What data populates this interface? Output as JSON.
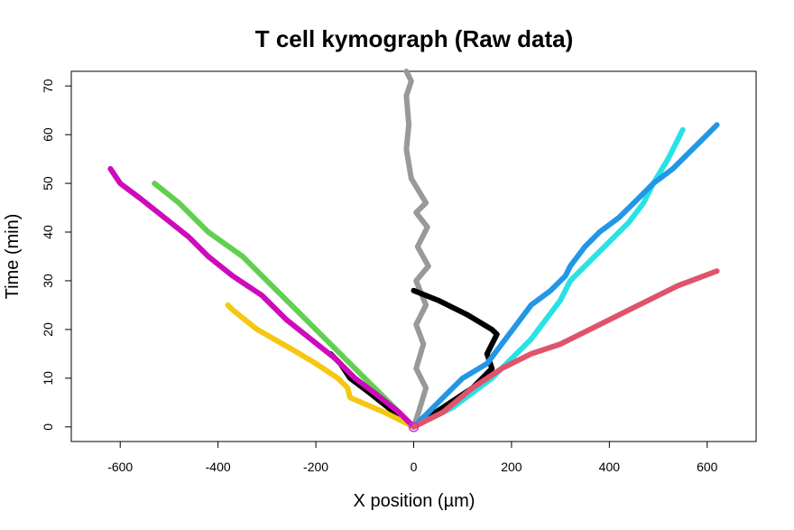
{
  "chart_data": {
    "type": "line",
    "title": "T cell kymograph (Raw data)",
    "xlabel": "X position (µm)",
    "ylabel": "Time (min)",
    "xlim": [
      -700,
      700
    ],
    "ylim": [
      -3,
      73
    ],
    "xticks": [
      -600,
      -400,
      -200,
      0,
      200,
      400,
      600
    ],
    "yticks": [
      0,
      10,
      20,
      30,
      40,
      50,
      60,
      70
    ],
    "grid": false,
    "legend": "none",
    "origin_marker": {
      "x": 0,
      "y": 0,
      "color": "#CC33CC"
    },
    "series": [
      {
        "color": "#999999",
        "points": [
          [
            0,
            0
          ],
          [
            10,
            3
          ],
          [
            25,
            8
          ],
          [
            5,
            12
          ],
          [
            20,
            17
          ],
          [
            5,
            21
          ],
          [
            25,
            25
          ],
          [
            5,
            30
          ],
          [
            30,
            33
          ],
          [
            8,
            37
          ],
          [
            28,
            41
          ],
          [
            5,
            44
          ],
          [
            25,
            46
          ],
          [
            -5,
            51
          ],
          [
            -15,
            57
          ],
          [
            -10,
            62
          ],
          [
            -15,
            68
          ],
          [
            -5,
            71
          ],
          [
            -15,
            73
          ]
        ]
      },
      {
        "color": "#000000",
        "points": [
          [
            -170,
            15
          ],
          [
            -150,
            13
          ],
          [
            -130,
            10
          ],
          [
            -90,
            7
          ],
          [
            -40,
            3
          ],
          [
            0,
            0
          ],
          [
            60,
            4
          ],
          [
            120,
            8
          ],
          [
            160,
            12
          ],
          [
            150,
            15
          ],
          [
            170,
            19
          ],
          [
            160,
            20
          ],
          [
            110,
            23
          ],
          [
            50,
            26
          ],
          [
            0,
            28
          ]
        ]
      },
      {
        "color": "#F5C710",
        "points": [
          [
            0,
            0
          ],
          [
            -60,
            3
          ],
          [
            -130,
            6
          ],
          [
            -135,
            8
          ],
          [
            -155,
            10
          ],
          [
            -200,
            13
          ],
          [
            -250,
            16
          ],
          [
            -320,
            20
          ],
          [
            -370,
            24
          ],
          [
            -380,
            25
          ]
        ]
      },
      {
        "color": "#61D04F",
        "points": [
          [
            0,
            0
          ],
          [
            -50,
            5
          ],
          [
            -100,
            10
          ],
          [
            -150,
            15
          ],
          [
            -200,
            20
          ],
          [
            -250,
            25
          ],
          [
            -300,
            30
          ],
          [
            -350,
            35
          ],
          [
            -420,
            40
          ],
          [
            -480,
            46
          ],
          [
            -530,
            50
          ]
        ]
      },
      {
        "color": "#CD0BBC",
        "points": [
          [
            0,
            0
          ],
          [
            -30,
            3
          ],
          [
            -80,
            7
          ],
          [
            -120,
            10
          ],
          [
            -160,
            14
          ],
          [
            -210,
            18
          ],
          [
            -260,
            22
          ],
          [
            -310,
            27
          ],
          [
            -370,
            31
          ],
          [
            -420,
            35
          ],
          [
            -460,
            39
          ],
          [
            -510,
            43
          ],
          [
            -560,
            47
          ],
          [
            -600,
            50
          ],
          [
            -620,
            53
          ]
        ]
      },
      {
        "color": "#28E2E5",
        "points": [
          [
            0,
            0
          ],
          [
            40,
            2
          ],
          [
            80,
            4
          ],
          [
            120,
            7
          ],
          [
            160,
            10
          ],
          [
            200,
            14
          ],
          [
            240,
            18
          ],
          [
            270,
            22
          ],
          [
            300,
            26
          ],
          [
            320,
            30
          ],
          [
            360,
            34
          ],
          [
            400,
            38
          ],
          [
            440,
            42
          ],
          [
            470,
            46
          ],
          [
            490,
            50
          ],
          [
            520,
            55
          ],
          [
            540,
            59
          ],
          [
            550,
            61
          ]
        ]
      },
      {
        "color": "#2297E6",
        "points": [
          [
            0,
            0
          ],
          [
            20,
            2
          ],
          [
            30,
            3
          ],
          [
            60,
            6
          ],
          [
            100,
            10
          ],
          [
            150,
            13
          ],
          [
            180,
            17
          ],
          [
            210,
            21
          ],
          [
            240,
            25
          ],
          [
            280,
            28
          ],
          [
            310,
            31
          ],
          [
            320,
            33
          ],
          [
            350,
            37
          ],
          [
            380,
            40
          ],
          [
            420,
            43
          ],
          [
            450,
            46
          ],
          [
            490,
            50
          ],
          [
            530,
            53
          ],
          [
            570,
            57
          ],
          [
            600,
            60
          ],
          [
            620,
            62
          ]
        ]
      },
      {
        "color": "#DF536B",
        "points": [
          [
            0,
            0
          ],
          [
            60,
            3
          ],
          [
            120,
            8
          ],
          [
            180,
            12
          ],
          [
            240,
            15
          ],
          [
            300,
            17
          ],
          [
            360,
            20
          ],
          [
            420,
            23
          ],
          [
            480,
            26
          ],
          [
            540,
            29
          ],
          [
            620,
            32
          ]
        ]
      }
    ]
  }
}
